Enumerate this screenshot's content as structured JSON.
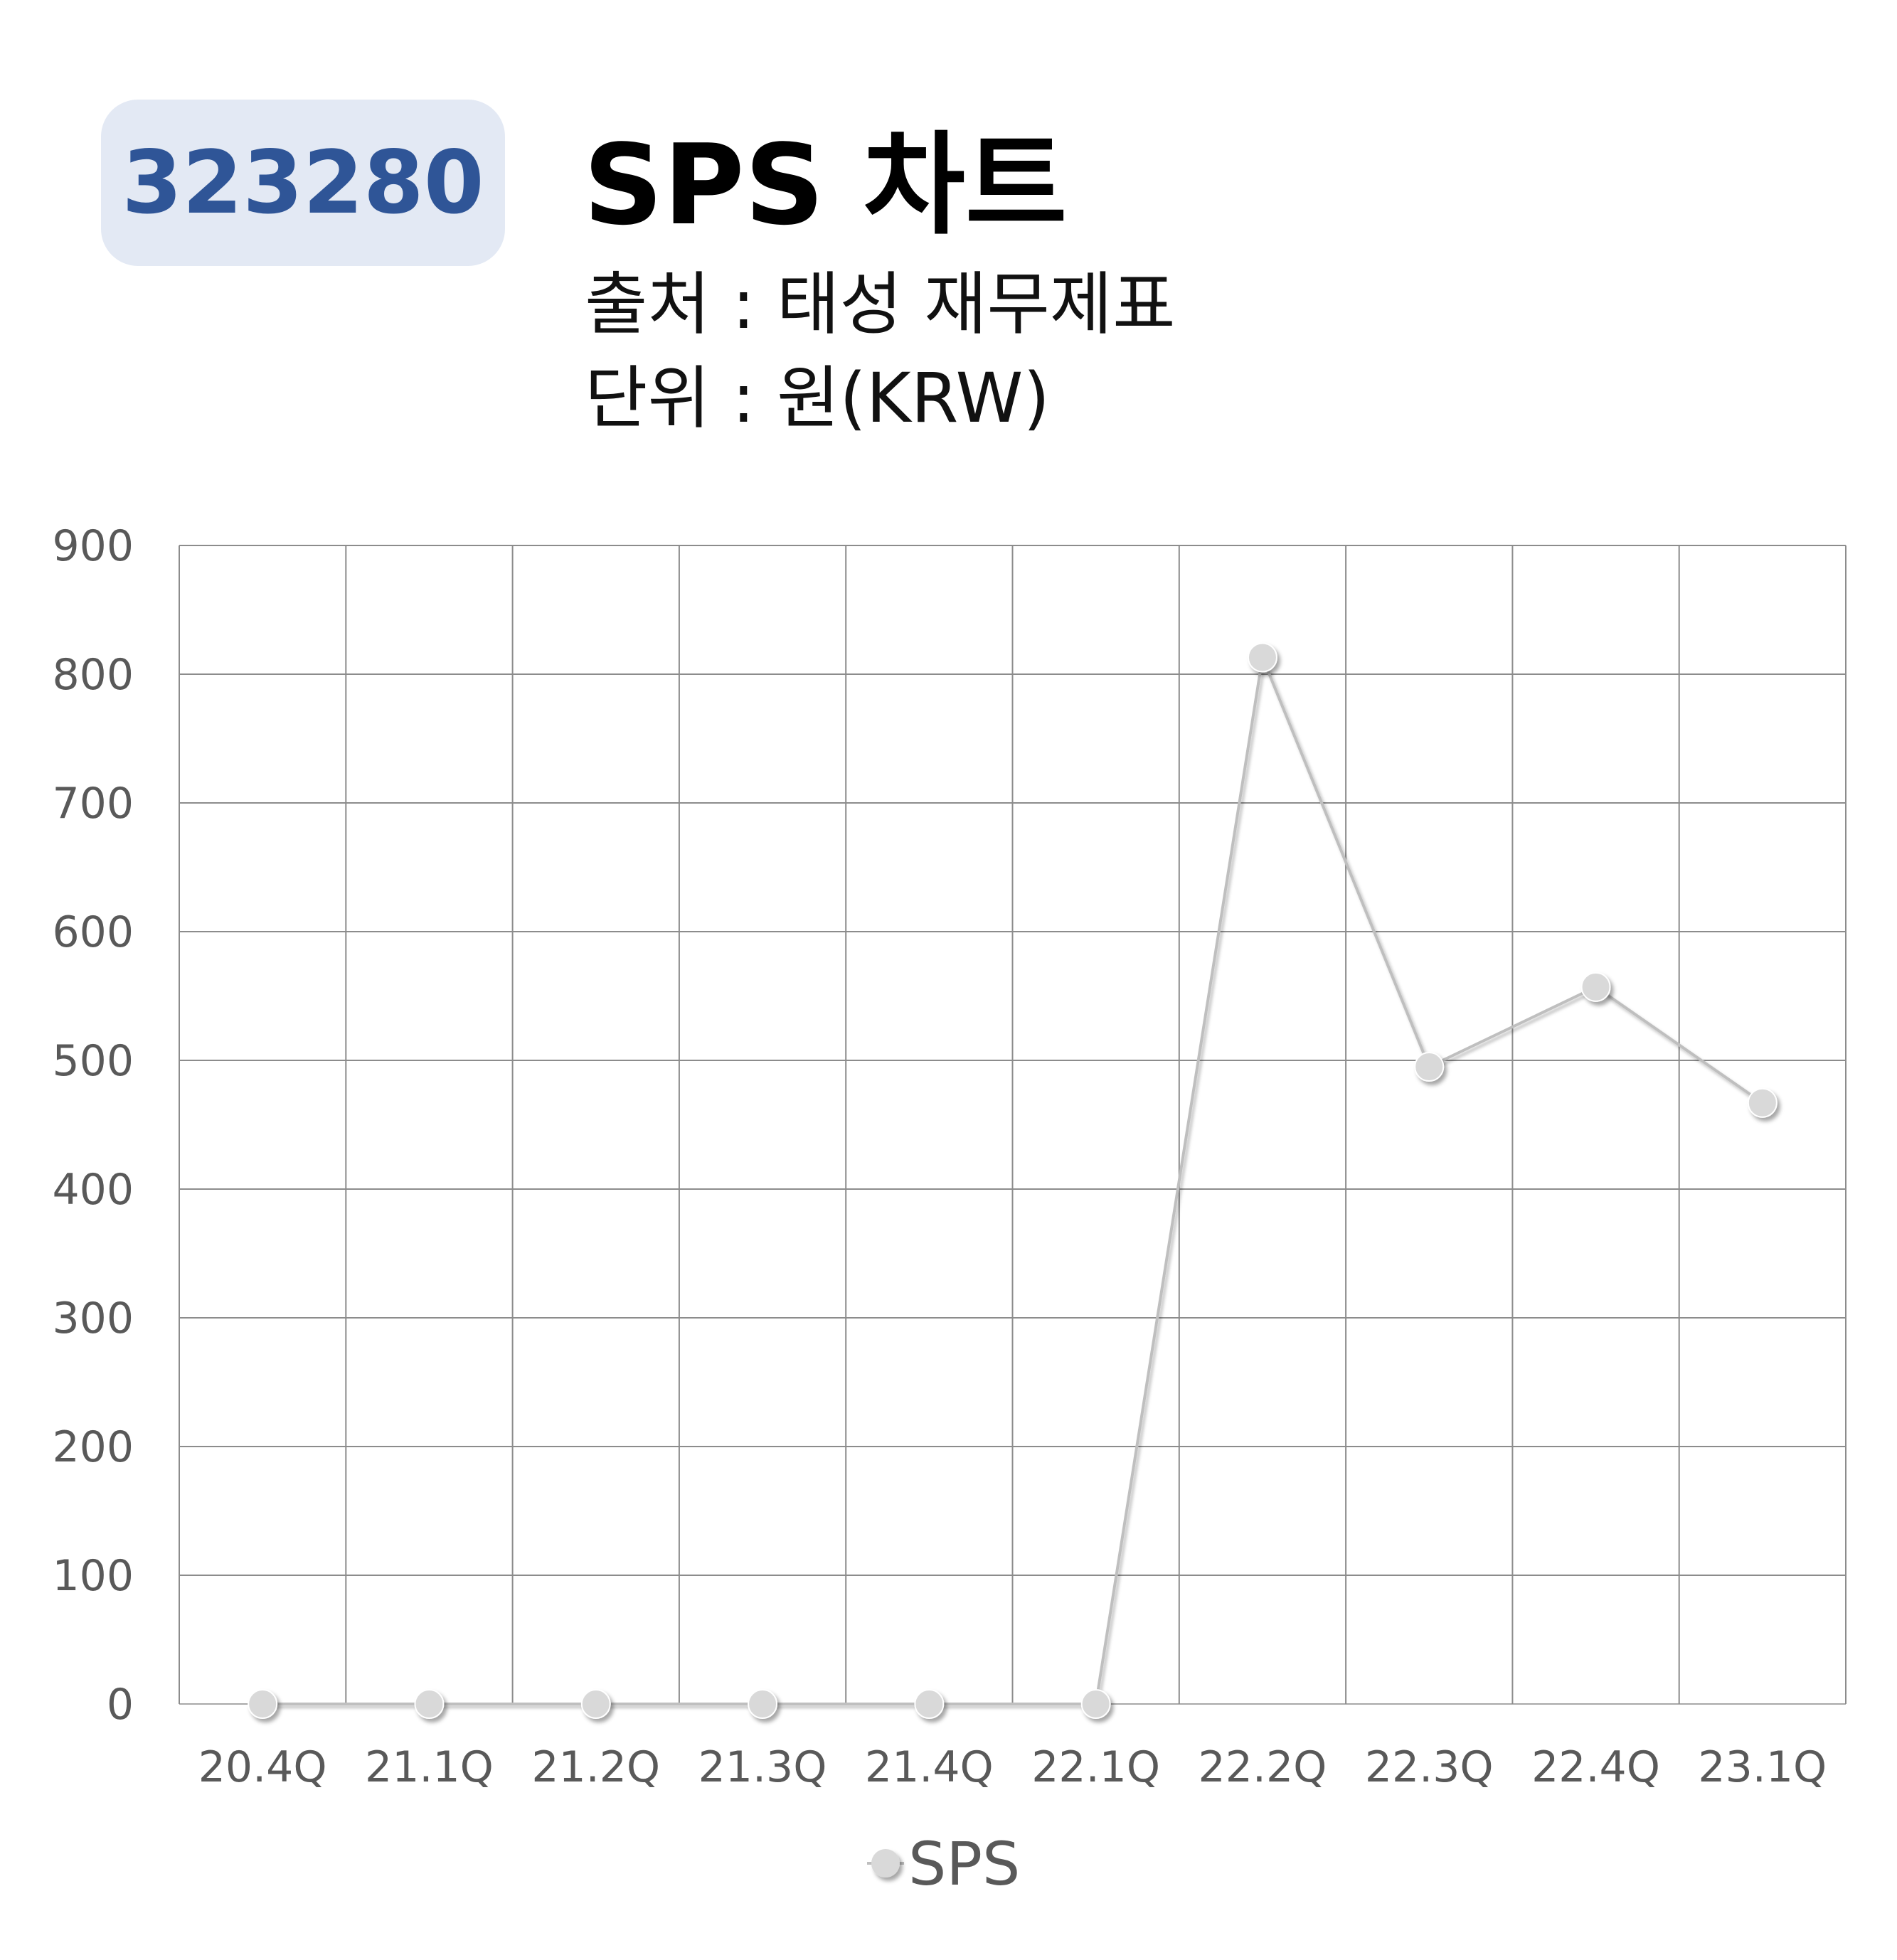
{
  "header": {
    "code": "323280",
    "title": "SPS 차트",
    "source": "출처 : 태성 재무제표",
    "unit": "단위 : 원(KRW)"
  },
  "colors": {
    "badge_bg": "#e3e9f4",
    "badge_text": "#2f5597",
    "series": "#bfbfbf",
    "marker": "#d9d9d9",
    "grid": "#8c8c8c",
    "tick_text": "#595959"
  },
  "chart_data": {
    "type": "line",
    "categories": [
      "20.4Q",
      "21.1Q",
      "21.2Q",
      "21.3Q",
      "21.4Q",
      "22.1Q",
      "22.2Q",
      "22.3Q",
      "22.4Q",
      "23.1Q"
    ],
    "series": [
      {
        "name": "SPS",
        "values": [
          0,
          0,
          0,
          0,
          0,
          0,
          813,
          495,
          557,
          467
        ]
      }
    ],
    "yticks": [
      0,
      100,
      200,
      300,
      400,
      500,
      600,
      700,
      800,
      900
    ],
    "ylim": [
      0,
      900
    ],
    "grid": true,
    "legend": "bottom-center"
  }
}
